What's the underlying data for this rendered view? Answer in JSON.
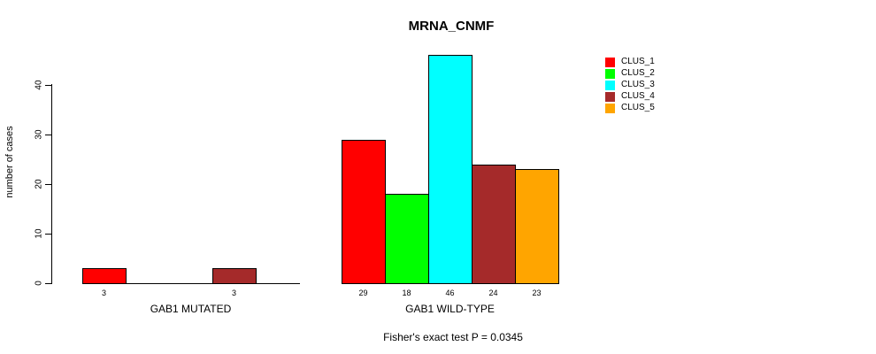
{
  "chart_data": {
    "type": "bar",
    "title": "MRNA_CNMF",
    "ylabel": "number of cases",
    "xlabel": "",
    "annotation": "Fisher's exact test P = 0.0345",
    "ylim": [
      0,
      46
    ],
    "yticks": [
      0,
      10,
      20,
      30,
      40
    ],
    "grid": false,
    "legend_position": "right",
    "legend": [
      {
        "label": "CLUS_1",
        "color": "#ff0000"
      },
      {
        "label": "CLUS_2",
        "color": "#00ff00"
      },
      {
        "label": "CLUS_3",
        "color": "#00ffff"
      },
      {
        "label": "CLUS_4",
        "color": "#a52a2a"
      },
      {
        "label": "CLUS_5",
        "color": "#ffa500"
      }
    ],
    "groups": [
      {
        "label": "GAB1 MUTATED",
        "values": [
          3,
          0,
          0,
          3,
          0
        ]
      },
      {
        "label": "GAB1 WILD-TYPE",
        "values": [
          29,
          18,
          46,
          24,
          23
        ]
      }
    ]
  },
  "colors": {
    "axis": "#000000",
    "background": "#ffffff",
    "text": "#000000"
  }
}
